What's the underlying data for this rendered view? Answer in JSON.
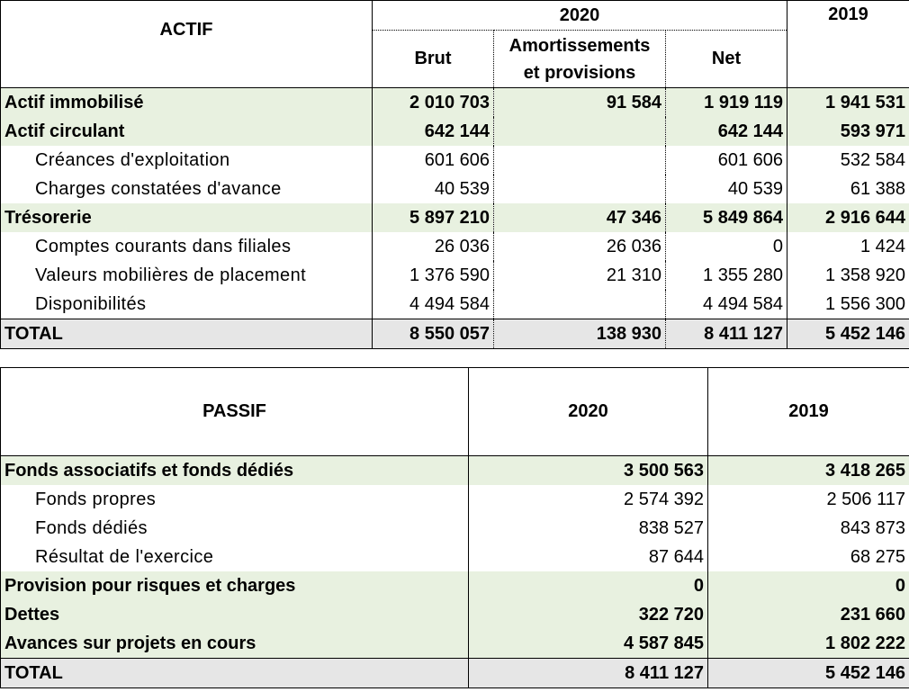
{
  "actif": {
    "label": "ACTIF",
    "year_current": "2020",
    "year_previous": "2019",
    "col_brut": "Brut",
    "col_amort_line1": "Amortissements",
    "col_amort_line2": "et provisions",
    "col_net": "Net",
    "rows": [
      {
        "label": "Actif immobilisé",
        "brut": "2 010 703",
        "amort": "91 584",
        "net": "1 919 119",
        "prev": "1 941 531"
      },
      {
        "label": "Actif circulant",
        "brut": "642 144",
        "amort": "",
        "net": "642 144",
        "prev": "593 971"
      },
      {
        "label": "Créances d'exploitation",
        "brut": "601 606",
        "amort": "",
        "net": "601 606",
        "prev": "532 584"
      },
      {
        "label": "Charges constatées d'avance",
        "brut": "40 539",
        "amort": "",
        "net": "40 539",
        "prev": "61 388"
      },
      {
        "label": "Trésorerie",
        "brut": "5 897 210",
        "amort": "47 346",
        "net": "5 849 864",
        "prev": "2 916 644"
      },
      {
        "label": "Comptes courants dans filiales",
        "brut": "26 036",
        "amort": "26 036",
        "net": "0",
        "prev": "1 424"
      },
      {
        "label": "Valeurs mobilières de placement",
        "brut": "1 376 590",
        "amort": "21 310",
        "net": "1 355 280",
        "prev": "1 358 920"
      },
      {
        "label": "Disponibilités",
        "brut": "4 494 584",
        "amort": "",
        "net": "4 494 584",
        "prev": "1 556 300"
      }
    ],
    "total": {
      "label": "TOTAL",
      "brut": "8 550 057",
      "amort": "138 930",
      "net": "8 411 127",
      "prev": "5 452 146"
    }
  },
  "passif": {
    "label": "PASSIF",
    "year_current": "2020",
    "year_previous": "2019",
    "rows": [
      {
        "label": "Fonds associatifs et fonds dédiés",
        "current": "3 500 563",
        "prev": "3 418 265"
      },
      {
        "label": "Fonds propres",
        "current": "2 574 392",
        "prev": "2 506 117"
      },
      {
        "label": "Fonds dédiés",
        "current": "838 527",
        "prev": "843 873"
      },
      {
        "label": "Résultat de l'exercice",
        "current": "87 644",
        "prev": "68 275"
      },
      {
        "label": "Provision pour risques et charges",
        "current": "0",
        "prev": "0"
      },
      {
        "label": "Dettes",
        "current": "322 720",
        "prev": "231 660"
      },
      {
        "label": "Avances sur projets en cours",
        "current": "4 587 845",
        "prev": "1 802 222"
      }
    ],
    "total": {
      "label": "TOTAL",
      "current": "8 411 127",
      "prev": "5 452 146"
    }
  },
  "colors": {
    "section_highlight": "#e8f1e0",
    "total_highlight": "#e6e6e6"
  }
}
